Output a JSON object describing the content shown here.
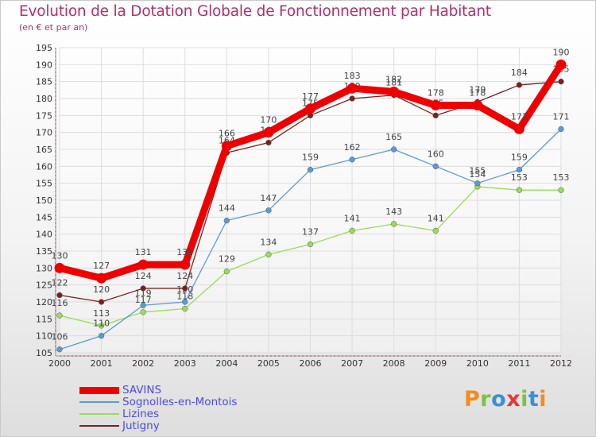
{
  "header": {
    "title": "Evolution de la Dotation Globale de Fonctionnement par Habitant",
    "subtitle": "(en € et par an)"
  },
  "logo": {
    "text": "Proxiti"
  },
  "chart_data": {
    "type": "line",
    "title": "Evolution de la Dotation Globale de Fonctionnement par Habitant",
    "subtitle": "(en € et par an)",
    "xlabel": "",
    "ylabel": "",
    "x": [
      "2000",
      "2001",
      "2002",
      "2003",
      "2004",
      "2005",
      "2006",
      "2007",
      "2008",
      "2009",
      "2010",
      "2011",
      "2012"
    ],
    "ylim": [
      105,
      195
    ],
    "yticks": [
      105,
      110,
      115,
      120,
      125,
      130,
      135,
      140,
      145,
      150,
      155,
      160,
      165,
      170,
      175,
      180,
      185,
      190,
      195
    ],
    "grid": true,
    "legend_position": "bottom-left",
    "series": [
      {
        "name": "SAVINS",
        "color": "#ee0000",
        "values": [
          130,
          127,
          131,
          131,
          166,
          170,
          177,
          183,
          182,
          178,
          178,
          171,
          190
        ]
      },
      {
        "name": "Sognolles-en-Montois",
        "color": "#5b9bd5",
        "values": [
          106,
          110,
          119,
          120,
          144,
          147,
          159,
          162,
          165,
          160,
          155,
          159,
          171
        ]
      },
      {
        "name": "Lizines",
        "color": "#99dd55",
        "values": [
          116,
          113,
          117,
          118,
          129,
          134,
          137,
          141,
          143,
          141,
          154,
          153,
          153
        ]
      },
      {
        "name": "Jutigny",
        "color": "#7a1f1f",
        "values": [
          122,
          120,
          124,
          124,
          164,
          167,
          175,
          180,
          181,
          175,
          179,
          184,
          185
        ]
      }
    ]
  }
}
